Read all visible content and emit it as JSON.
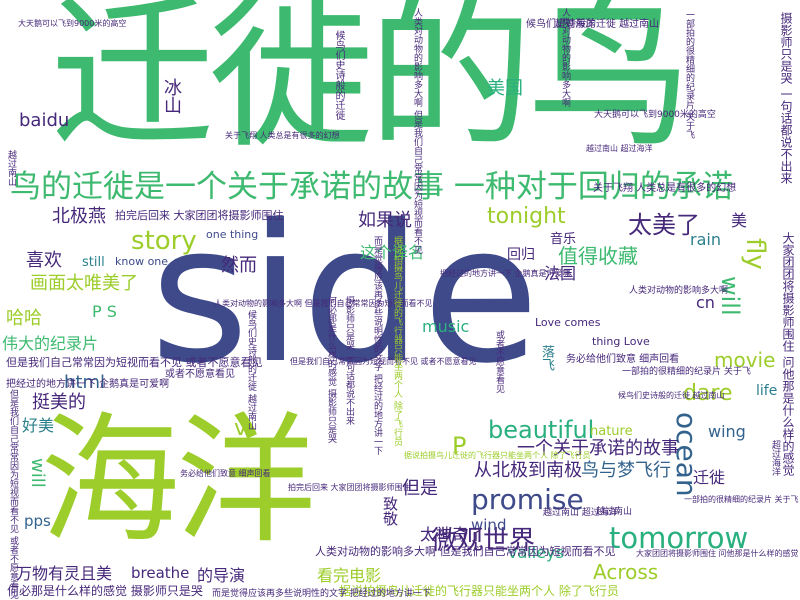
{
  "palette": {
    "green": "#3dba6f",
    "lime": "#9ccd2a",
    "navy": "#3e4a8a",
    "purple": "#46287a",
    "teal": "#2a7f8c",
    "blue": "#33638d",
    "mint": "#2ab07f"
  },
  "words": [
    {
      "text": "迁徙的鸟",
      "color": "green"
    },
    {
      "text": "side",
      "color": "navy"
    },
    {
      "text": "海洋",
      "color": "lime"
    },
    {
      "text": "鸟的迁徙是一个关于承诺的故事 一种对于回归的承诺",
      "color": "green"
    },
    {
      "text": "tomorrow",
      "color": "mint"
    },
    {
      "text": "promise",
      "color": "navy"
    },
    {
      "text": "微观世界",
      "color": "purple"
    },
    {
      "text": "story",
      "color": "lime"
    },
    {
      "text": "tonight",
      "color": "lime"
    },
    {
      "text": "太美了",
      "color": "purple"
    },
    {
      "text": "北极燕",
      "color": "purple"
    },
    {
      "text": "美国",
      "color": "mint"
    },
    {
      "text": "如果说",
      "color": "purple"
    },
    {
      "text": "值得收藏",
      "color": "green"
    },
    {
      "text": "beautiful",
      "color": "mint"
    },
    {
      "text": "ocean",
      "color": "blue"
    },
    {
      "text": "fly",
      "color": "lime"
    },
    {
      "text": "will",
      "color": "green"
    },
    {
      "text": "Across",
      "color": "lime"
    },
    {
      "text": "wing",
      "color": "blue"
    },
    {
      "text": "movie",
      "color": "lime"
    },
    {
      "text": "music",
      "color": "mint"
    },
    {
      "text": "valleys",
      "color": "mint"
    },
    {
      "text": "breathe",
      "color": "purple"
    },
    {
      "text": "dare",
      "color": "lime"
    },
    {
      "text": "wind",
      "color": "navy"
    },
    {
      "text": "rain",
      "color": "teal"
    },
    {
      "text": "html",
      "color": "blue"
    },
    {
      "text": "pps",
      "color": "blue"
    },
    {
      "text": "baidu",
      "color": "purple"
    },
    {
      "text": "P S",
      "color": "green"
    },
    {
      "text": "喜欢",
      "color": "purple"
    },
    {
      "text": "哈哈",
      "color": "lime"
    },
    {
      "text": "挺美的",
      "color": "purple"
    },
    {
      "text": "好美",
      "color": "teal"
    },
    {
      "text": "伟大的纪录片",
      "color": "green"
    },
    {
      "text": "画面太唯美了",
      "color": "lime"
    },
    {
      "text": "然而",
      "color": "purple"
    },
    {
      "text": "这个译名",
      "color": "green"
    },
    {
      "text": "音乐",
      "color": "purple"
    },
    {
      "text": "回归",
      "color": "purple"
    },
    {
      "text": "法国",
      "color": "purple"
    },
    {
      "text": "美",
      "color": "purple"
    },
    {
      "text": "一个关于承诺的故事",
      "color": "purple"
    },
    {
      "text": "从北极到南极",
      "color": "purple"
    },
    {
      "text": "鸟与梦飞行",
      "color": "blue"
    },
    {
      "text": "迁徙",
      "color": "purple"
    },
    {
      "text": "但是",
      "color": "purple"
    },
    {
      "text": "太神奇了",
      "color": "purple"
    },
    {
      "text": "万物有灵且美",
      "color": "purple"
    },
    {
      "text": "看完电影",
      "color": "lime"
    },
    {
      "text": "的导演",
      "color": "purple"
    },
    {
      "text": "致敬",
      "color": "purple"
    },
    {
      "text": "冰山",
      "color": "purple"
    },
    {
      "text": "落飞",
      "color": "teal"
    },
    {
      "text": "still",
      "color": "teal"
    },
    {
      "text": "nature",
      "color": "lime"
    },
    {
      "text": "life",
      "color": "teal"
    },
    {
      "text": "cn",
      "color": "purple"
    },
    {
      "text": "P",
      "color": "lime"
    },
    {
      "text": "v",
      "color": "lime"
    },
    {
      "text": "one thing",
      "color": "navy"
    },
    {
      "text": "know one",
      "color": "navy"
    },
    {
      "text": "Love comes",
      "color": "purple"
    },
    {
      "text": "thing Love",
      "color": "purple"
    },
    {
      "text": "拍完后回来 大家团团将摄影师围住",
      "color": "purple"
    },
    {
      "text": "人类对动物的影响多大啊 但是我们自己常常因为短视而看不见",
      "color": "purple"
    },
    {
      "text": "但是我们自己常常因为短视而看不见 或者不愿意看见",
      "color": "purple"
    },
    {
      "text": "据说拍摄鸟儿迁徙的飞行器只能坐两个人 除了飞行员",
      "color": "lime"
    },
    {
      "text": "何必那是什么样的感觉 摄影师只是哭",
      "color": "purple"
    },
    {
      "text": "大家团团将摄影师围住 问他那是什么样的感觉",
      "color": "purple"
    },
    {
      "text": "摄影师只是哭 一句话都说不出来",
      "color": "purple"
    },
    {
      "text": "候鸟们史诗般的迁徙 越过南山",
      "color": "purple"
    },
    {
      "text": "大天鹅可以飞到9000米的高空",
      "color": "purple"
    },
    {
      "text": "关于飞翔 人类总是有很多的幻想",
      "color": "purple"
    },
    {
      "text": "人类对动物的影响多大啊",
      "color": "purple"
    },
    {
      "text": "务必给他们致意 细声回看",
      "color": "purple"
    },
    {
      "text": "越过南山 超过海洋",
      "color": "purple"
    },
    {
      "text": "一部拍的很精细的纪录片 关于飞",
      "color": "purple"
    },
    {
      "text": "把经过的地方讲一下 企鹅真是可爱啊",
      "color": "purple"
    },
    {
      "text": "而是觉得应该再多些说明性的文字 把经过的地方讲一下",
      "color": "purple"
    },
    {
      "text": "或者不愿意看见",
      "color": "purple"
    },
    {
      "text": "候鸟们史诗般的迁徙",
      "color": "purple"
    },
    {
      "text": "超过海洋",
      "color": "purple"
    },
    {
      "text": "越过南山",
      "color": "purple"
    }
  ]
}
